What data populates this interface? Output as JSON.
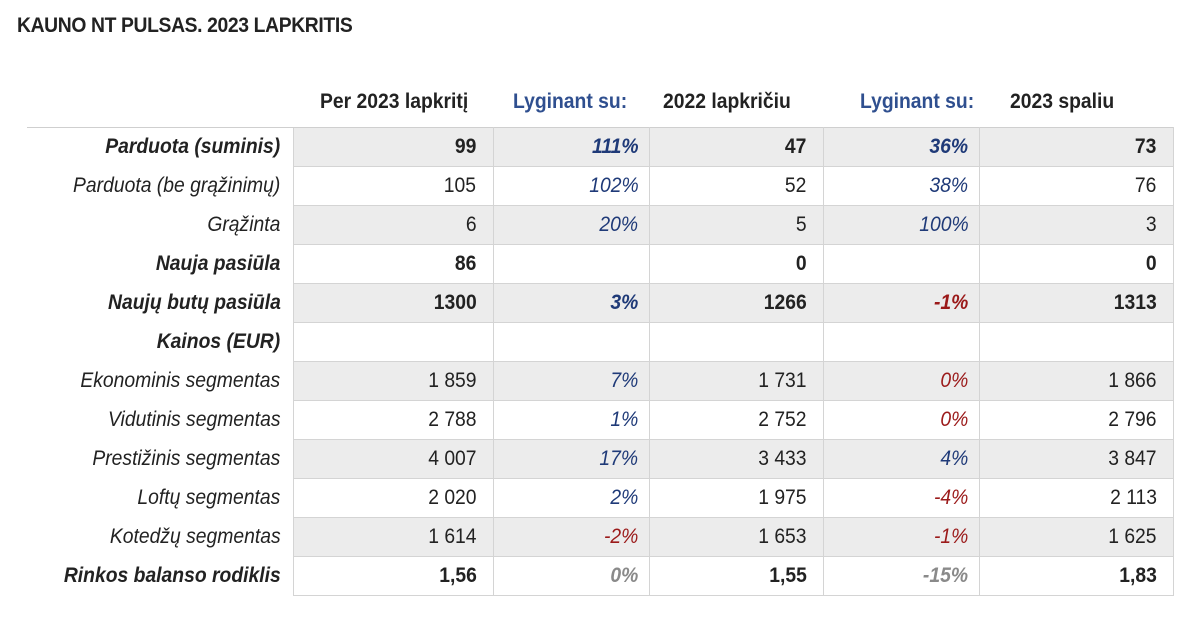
{
  "title": "KAUNO NT PULSAS. 2023 LAPKRITIS",
  "headers": {
    "current": "Per 2023 lapkritį",
    "compare1_prefix": "Lyginant su:",
    "compare1": "2022 lapkričiu",
    "compare2_prefix": "Lyginant su:",
    "compare2": "2023 spaliu"
  },
  "rows": [
    {
      "label": "Parduota (suminis)",
      "cur": "99",
      "p1": "111%",
      "v1": "47",
      "p2": "36%",
      "v2": "73",
      "shade": true,
      "bold": true,
      "c1": "pos",
      "c2": "pos"
    },
    {
      "label": "Parduota (be grąžinimų)",
      "cur": "105",
      "p1": "102%",
      "v1": "52",
      "p2": "38%",
      "v2": "76",
      "shade": false,
      "bold": false,
      "c1": "pos",
      "c2": "pos"
    },
    {
      "label": "Grąžinta",
      "cur": "6",
      "p1": "20%",
      "v1": "5",
      "p2": "100%",
      "v2": "3",
      "shade": true,
      "bold": false,
      "c1": "pos",
      "c2": "pos"
    },
    {
      "label": "Nauja pasiūla",
      "cur": "86",
      "p1": "",
      "v1": "0",
      "p2": "",
      "v2": "0",
      "shade": false,
      "bold": true,
      "c1": "pos",
      "c2": "pos"
    },
    {
      "label": "Naujų butų pasiūla",
      "cur": "1300",
      "p1": "3%",
      "v1": "1266",
      "p2": "-1%",
      "v2": "1313",
      "shade": true,
      "bold": true,
      "c1": "pos",
      "c2": "neg"
    },
    {
      "label": "Kainos (EUR)",
      "cur": "",
      "p1": "",
      "v1": "",
      "p2": "",
      "v2": "",
      "shade": false,
      "bold": true,
      "c1": "pos",
      "c2": "pos"
    },
    {
      "label": "Ekonominis segmentas",
      "cur": "1 859",
      "p1": "7%",
      "v1": "1 731",
      "p2": "0%",
      "v2": "1 866",
      "shade": true,
      "bold": false,
      "c1": "pos",
      "c2": "neg"
    },
    {
      "label": "Vidutinis segmentas",
      "cur": "2 788",
      "p1": "1%",
      "v1": "2 752",
      "p2": "0%",
      "v2": "2 796",
      "shade": false,
      "bold": false,
      "c1": "pos",
      "c2": "neg"
    },
    {
      "label": "Prestižinis segmentas",
      "cur": "4 007",
      "p1": "17%",
      "v1": "3 433",
      "p2": "4%",
      "v2": "3 847",
      "shade": true,
      "bold": false,
      "c1": "pos",
      "c2": "pos"
    },
    {
      "label": "Loftų segmentas",
      "cur": "2 020",
      "p1": "2%",
      "v1": "1 975",
      "p2": "-4%",
      "v2": "2 113",
      "shade": false,
      "bold": false,
      "c1": "pos",
      "c2": "neg"
    },
    {
      "label": "Kotedžų segmentas",
      "cur": "1 614",
      "p1": "-2%",
      "v1": "1 653",
      "p2": "-1%",
      "v2": "1 625",
      "shade": true,
      "bold": false,
      "c1": "neg",
      "c2": "neg"
    },
    {
      "label": "Rinkos balanso rodiklis",
      "cur": "1,56",
      "p1": "0%",
      "v1": "1,55",
      "p2": "-15%",
      "v2": "1,83",
      "shade": false,
      "bold": true,
      "c1": "zero",
      "c2": "zero"
    }
  ],
  "colors": {
    "positive": "#1f3a78",
    "negative": "#9b1a1a",
    "neutral": "#8a8a8a",
    "header_blue": "#2f4f8f",
    "shade": "#ececec"
  }
}
